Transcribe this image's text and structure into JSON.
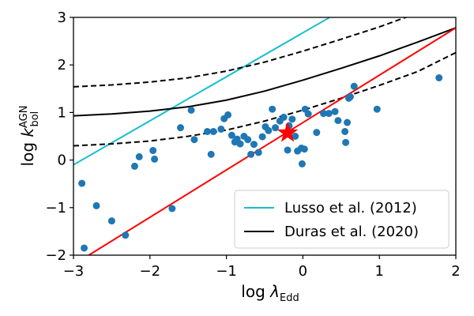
{
  "chart_data": {
    "type": "scatter",
    "xlabel": {
      "base": "log",
      "symbol": "λ",
      "sub": "Edd"
    },
    "ylabel": {
      "base": "log",
      "symbol": "k",
      "sub": "bol",
      "sup": "AGN"
    },
    "xlim": [
      -3,
      2
    ],
    "ylim": [
      -2,
      3
    ],
    "x_ticks": [
      -3,
      -2,
      -1,
      0,
      1,
      2
    ],
    "x_tick_labels": [
      "−3",
      "−2",
      "−1",
      "0",
      "1",
      "2"
    ],
    "y_ticks": [
      -2,
      -1,
      0,
      1,
      2,
      3
    ],
    "y_tick_labels": [
      "−2",
      "−1",
      "0",
      "1",
      "2",
      "3"
    ],
    "grid": false,
    "legend_position": "bottom-right",
    "colors": {
      "points": "#1f77b4",
      "lusso": "#17becf",
      "duras": "#000000",
      "fit": "#ff0000",
      "star": "#ff0000"
    },
    "series": [
      {
        "name": "Lusso et al. (2012)",
        "kind": "line",
        "color": "#17becf",
        "x": [
          -3.0,
          0.35
        ],
        "y": [
          -0.1,
          3.0
        ]
      },
      {
        "name": "Duras et al. (2020)",
        "kind": "line",
        "color": "#000000",
        "x": [
          -3.0,
          -2.5,
          -2.0,
          -1.5,
          -1.0,
          -0.5,
          0.0,
          0.5,
          1.0,
          1.5,
          2.0
        ],
        "y": [
          0.93,
          0.97,
          1.03,
          1.12,
          1.26,
          1.45,
          1.68,
          1.93,
          2.19,
          2.48,
          2.78
        ]
      },
      {
        "kind": "dashed-line",
        "color": "#000000",
        "x": [
          -3.0,
          -2.5,
          -2.0,
          -1.5,
          -1.0,
          -0.5,
          0.0,
          0.5,
          1.0,
          1.5,
          2.0
        ],
        "y": [
          1.54,
          1.58,
          1.64,
          1.73,
          1.87,
          2.06,
          2.29,
          2.54,
          2.8,
          3.09,
          3.39
        ]
      },
      {
        "kind": "dashed-line",
        "color": "#000000",
        "x": [
          -3.0,
          -2.5,
          -2.0,
          -1.5,
          -1.0,
          -0.5,
          0.0,
          0.5,
          1.0,
          1.5,
          2.0
        ],
        "y": [
          0.3,
          0.34,
          0.4,
          0.5,
          0.63,
          0.82,
          1.05,
          1.3,
          1.57,
          1.86,
          2.26
        ]
      },
      {
        "kind": "line",
        "color": "#ff0000",
        "x": [
          -2.8,
          2.0
        ],
        "y": [
          -2.0,
          2.78
        ]
      },
      {
        "kind": "scatter",
        "color": "#1f77b4",
        "points": [
          [
            -2.89,
            -0.49
          ],
          [
            -2.86,
            -1.85
          ],
          [
            -2.7,
            -0.96
          ],
          [
            -2.5,
            -1.28
          ],
          [
            -2.32,
            -1.58
          ],
          [
            -2.2,
            -0.13
          ],
          [
            -2.14,
            0.07
          ],
          [
            -1.96,
            0.2
          ],
          [
            -1.94,
            0.02
          ],
          [
            -1.71,
            -1.02
          ],
          [
            -1.6,
            0.68
          ],
          [
            -1.46,
            1.05
          ],
          [
            -1.42,
            0.43
          ],
          [
            -1.25,
            0.6
          ],
          [
            -1.2,
            0.12
          ],
          [
            -1.17,
            0.6
          ],
          [
            -1.07,
            0.65
          ],
          [
            -1.03,
            0.87
          ],
          [
            -0.98,
            0.95
          ],
          [
            -0.93,
            0.52
          ],
          [
            -0.89,
            0.38
          ],
          [
            -0.86,
            0.44
          ],
          [
            -0.82,
            0.34
          ],
          [
            -0.77,
            0.5
          ],
          [
            -0.72,
            0.43
          ],
          [
            -0.68,
            0.12
          ],
          [
            -0.64,
            0.33
          ],
          [
            -0.58,
            0.16
          ],
          [
            -0.53,
            0.49
          ],
          [
            -0.49,
            0.7
          ],
          [
            -0.45,
            0.62
          ],
          [
            -0.4,
            1.07
          ],
          [
            -0.36,
            0.68
          ],
          [
            -0.3,
            0.82
          ],
          [
            -0.25,
            0.9
          ],
          [
            -0.2,
            0.21
          ],
          [
            -0.18,
            0.72
          ],
          [
            -0.14,
            0.86
          ],
          [
            -0.1,
            0.5
          ],
          [
            -0.07,
            0.19
          ],
          [
            -0.02,
            0.25
          ],
          [
            -0.01,
            -0.08
          ],
          [
            0.02,
            0.23
          ],
          [
            0.03,
            1.07
          ],
          [
            0.07,
            0.97
          ],
          [
            0.18,
            0.58
          ],
          [
            0.27,
            0.98
          ],
          [
            0.34,
            0.98
          ],
          [
            0.42,
            1.02
          ],
          [
            0.46,
            0.83
          ],
          [
            0.55,
            0.6
          ],
          [
            0.56,
            0.37
          ],
          [
            0.58,
            0.79
          ],
          [
            0.6,
            1.3
          ],
          [
            0.62,
            1.33
          ],
          [
            0.67,
            1.55
          ],
          [
            0.97,
            1.07
          ],
          [
            1.78,
            1.73
          ]
        ]
      },
      {
        "kind": "star",
        "color": "#ff0000",
        "x": -0.2,
        "y": 0.57
      }
    ]
  }
}
